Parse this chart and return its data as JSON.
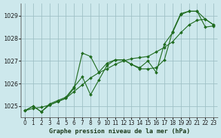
{
  "title": "Graphe pression niveau de la mer (hPa)",
  "background_color": "#cde8ec",
  "grid_color": "#9dbfc4",
  "line_color": "#1f6b1f",
  "xlim": [
    -0.5,
    23.5
  ],
  "ylim": [
    1024.5,
    1029.55
  ],
  "yticks": [
    1025,
    1026,
    1027,
    1028,
    1029
  ],
  "xticks": [
    0,
    1,
    2,
    3,
    4,
    5,
    6,
    7,
    8,
    9,
    10,
    11,
    12,
    13,
    14,
    15,
    16,
    17,
    18,
    19,
    20,
    21,
    22,
    23
  ],
  "xlabel_fontsize": 6.5,
  "tick_fontsize": 5.5,
  "s1_x": [
    0,
    1,
    2,
    3,
    4,
    5,
    6,
    7,
    8,
    9,
    10,
    11,
    12,
    13,
    14,
    15,
    16,
    17,
    18,
    19,
    20,
    21,
    22,
    23
  ],
  "s1_y": [
    1024.8,
    1025.0,
    1024.75,
    1025.05,
    1025.2,
    1025.35,
    1025.8,
    1027.35,
    1027.2,
    1026.5,
    1026.9,
    1027.05,
    1027.05,
    1026.85,
    1026.65,
    1026.65,
    1026.7,
    1027.05,
    1028.3,
    1029.1,
    1029.2,
    1029.2,
    1028.5,
    1028.55
  ],
  "s2_x": [
    0,
    1,
    2,
    3,
    4,
    5,
    6,
    7,
    8,
    9,
    10,
    11,
    12,
    13,
    14,
    15,
    16,
    17,
    18,
    19,
    20,
    21,
    22,
    23
  ],
  "s2_y": [
    1024.8,
    1025.0,
    1024.75,
    1025.1,
    1025.25,
    1025.4,
    1025.85,
    1026.3,
    1025.5,
    1026.15,
    1026.8,
    1027.05,
    1027.05,
    1026.85,
    1026.7,
    1027.0,
    1026.5,
    1027.75,
    1028.25,
    1029.05,
    1029.2,
    1029.2,
    1028.85,
    1028.6
  ],
  "s3_x": [
    0,
    1,
    2,
    3,
    4,
    5,
    6,
    7,
    8,
    9,
    10,
    11,
    12,
    13,
    14,
    15,
    16,
    17,
    18,
    19,
    20,
    21,
    22,
    23
  ],
  "s3_y": [
    1024.8,
    1024.9,
    1024.95,
    1025.05,
    1025.2,
    1025.35,
    1025.65,
    1025.95,
    1026.25,
    1026.48,
    1026.65,
    1026.85,
    1027.0,
    1027.1,
    1027.15,
    1027.2,
    1027.4,
    1027.6,
    1027.85,
    1028.25,
    1028.6,
    1028.8,
    1028.85,
    1028.6
  ]
}
